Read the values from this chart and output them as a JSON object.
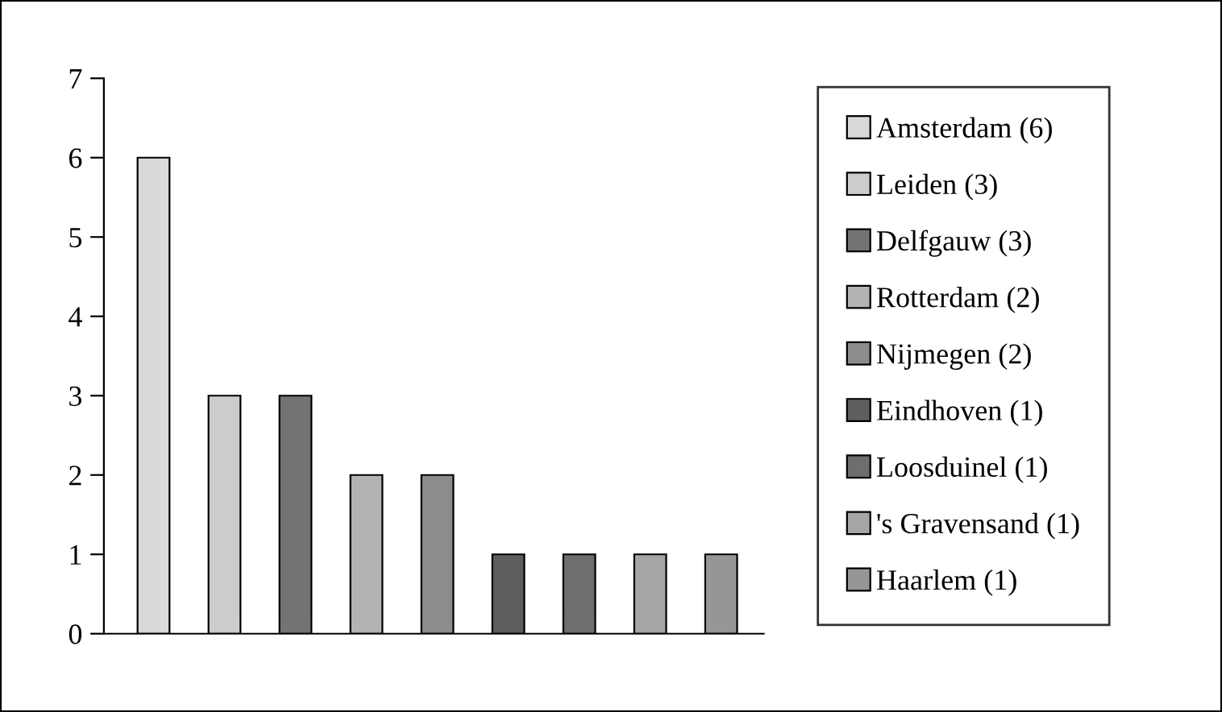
{
  "chart_data": {
    "type": "bar",
    "categories": [
      null,
      null,
      null,
      null,
      null,
      null,
      null,
      null,
      null
    ],
    "series": [
      {
        "name": "Amsterdam (6)",
        "color": "#d9d9d9",
        "values": [
          6,
          null,
          null,
          null,
          null,
          null,
          null,
          null,
          null
        ]
      },
      {
        "name": "Leiden (3)",
        "color": "#cccccc",
        "values": [
          null,
          3,
          null,
          null,
          null,
          null,
          null,
          null,
          null
        ]
      },
      {
        "name": "Delfgauw (3)",
        "color": "#737373",
        "values": [
          null,
          null,
          3,
          null,
          null,
          null,
          null,
          null,
          null
        ]
      },
      {
        "name": "Rotterdam (2)",
        "color": "#b3b3b3",
        "values": [
          null,
          null,
          null,
          2,
          null,
          null,
          null,
          null,
          null
        ]
      },
      {
        "name": "Nijmegen (2)",
        "color": "#8c8c8c",
        "values": [
          null,
          null,
          null,
          null,
          2,
          null,
          null,
          null,
          null
        ]
      },
      {
        "name": "Eindhoven (1)",
        "color": "#5e5e5e",
        "values": [
          null,
          null,
          null,
          null,
          null,
          1,
          null,
          null,
          null
        ]
      },
      {
        "name": "Loosduinel (1)",
        "color": "#6e6e6e",
        "values": [
          null,
          null,
          null,
          null,
          null,
          null,
          1,
          null,
          null
        ]
      },
      {
        "name": "'s Gravensand (1)",
        "color": "#a6a6a6",
        "values": [
          null,
          null,
          null,
          null,
          null,
          null,
          null,
          1,
          null
        ]
      },
      {
        "name": "Haarlem (1)",
        "color": "#969696",
        "values": [
          null,
          null,
          null,
          null,
          null,
          null,
          null,
          null,
          1
        ]
      }
    ],
    "ylim": [
      0,
      7
    ],
    "yticks": [
      0,
      1,
      2,
      3,
      4,
      5,
      6,
      7
    ],
    "grid": false,
    "legend": "right",
    "tick_labels": "y"
  }
}
